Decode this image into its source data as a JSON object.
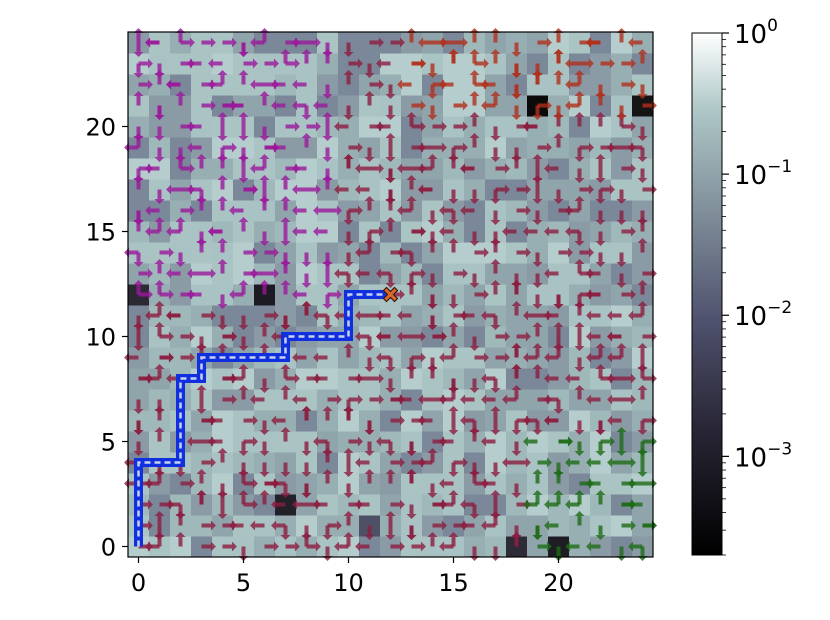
{
  "chart_data": {
    "type": "heatmap",
    "title": "",
    "xlabel": "",
    "ylabel": "",
    "grid_size": [
      25,
      25
    ],
    "xlim": [
      -0.5,
      24.5
    ],
    "ylim": [
      -0.5,
      24.5
    ],
    "xticks": [
      0,
      5,
      10,
      15,
      20
    ],
    "yticks": [
      0,
      5,
      10,
      15,
      20
    ],
    "xtick_labels": [
      "0",
      "5",
      "10",
      "15",
      "20"
    ],
    "ytick_labels": [
      "0",
      "5",
      "10",
      "15",
      "20"
    ],
    "colorbar": {
      "scale": "log",
      "range": [
        0.0002,
        1
      ],
      "colormap": "bone",
      "tick_values": [
        1,
        0.1,
        0.01,
        0.001
      ],
      "tick_labels": [
        {
          "base": "10",
          "exp": "0"
        },
        {
          "base": "10",
          "exp": "−1"
        },
        {
          "base": "10",
          "exp": "−2"
        },
        {
          "base": "10",
          "exp": "−3"
        }
      ]
    },
    "arrow_fields": [
      {
        "region": "main",
        "color": "#8c1d40"
      },
      {
        "region": "upper-left",
        "color": "#9b189b"
      },
      {
        "region": "upper-right",
        "color": "#b0301c"
      },
      {
        "region": "lower-right",
        "color": "#1e6b16"
      }
    ],
    "path": {
      "color": "#1030e0",
      "points": [
        [
          0,
          0
        ],
        [
          0,
          4
        ],
        [
          2,
          4
        ],
        [
          2,
          8
        ],
        [
          3,
          8
        ],
        [
          3,
          9
        ],
        [
          7,
          9
        ],
        [
          7,
          10
        ],
        [
          10,
          10
        ],
        [
          10,
          12
        ],
        [
          12,
          12
        ]
      ]
    },
    "goal": {
      "x": 12,
      "y": 12,
      "marker": "x-marker",
      "color": "#d96a2c"
    }
  }
}
